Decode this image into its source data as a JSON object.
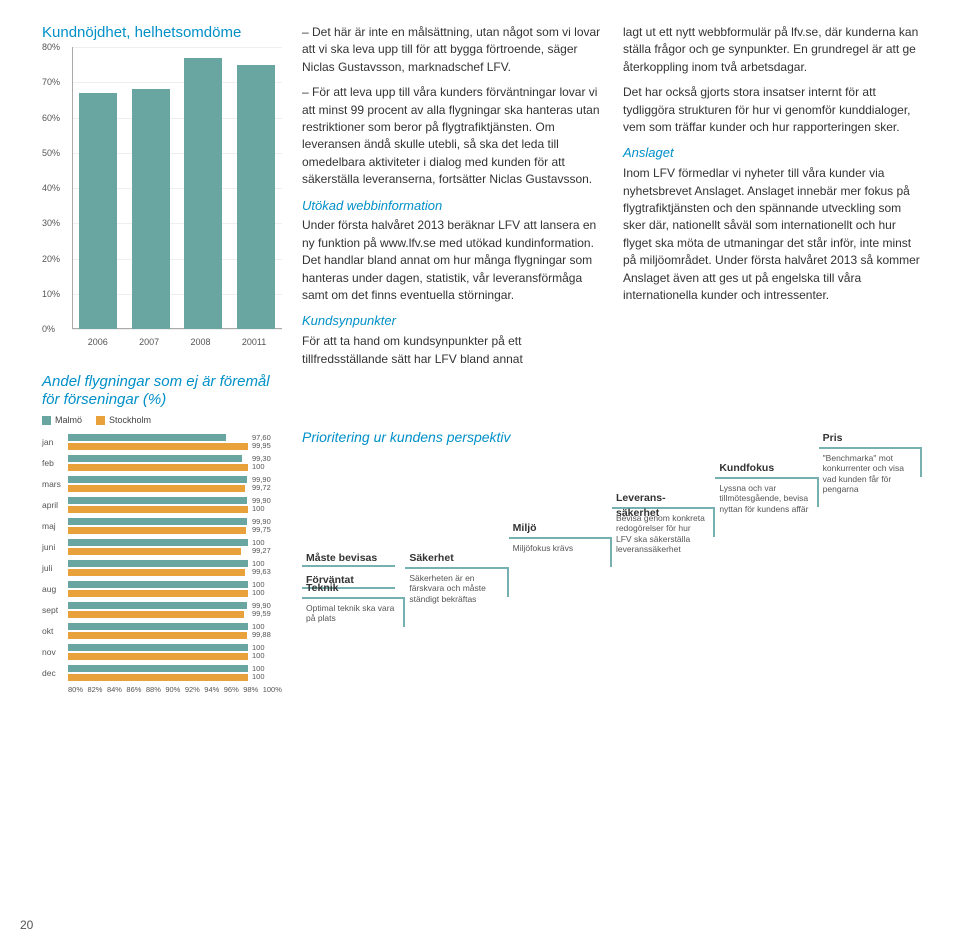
{
  "page_number": "20",
  "chart1": {
    "title": "Kundnöjdhet, helhetsomdöme",
    "type": "bar",
    "categories": [
      "2006",
      "2007",
      "2008",
      "20011"
    ],
    "values": [
      67,
      68,
      77,
      75
    ],
    "ymax": 80,
    "ytick_step": 10,
    "yticks": [
      "0%",
      "10%",
      "20%",
      "30%",
      "40%",
      "50%",
      "60%",
      "70%",
      "80%"
    ],
    "bar_color": "#69a6a2",
    "grid_color": "#eeeeee"
  },
  "chart2": {
    "title": "Andel flygningar som ej är föremål för förseningar (%)",
    "legend": [
      {
        "label": "Malmö",
        "color": "#69a6a2"
      },
      {
        "label": "Stockholm",
        "color": "#e9a23b"
      }
    ],
    "xmin": 80,
    "xmax": 100,
    "xticks": [
      "80%",
      "82%",
      "84%",
      "86%",
      "88%",
      "90%",
      "92%",
      "94%",
      "96%",
      "98%",
      "100%"
    ],
    "rows": [
      {
        "label": "jan",
        "malmo": 97.6,
        "stockholm": 99.95,
        "v1": "97,60",
        "v2": "99,95"
      },
      {
        "label": "feb",
        "malmo": 99.3,
        "stockholm": 100,
        "v1": "99,30",
        "v2": "100"
      },
      {
        "label": "mars",
        "malmo": 99.9,
        "stockholm": 99.72,
        "v1": "99,90",
        "v2": "99,72"
      },
      {
        "label": "april",
        "malmo": 99.9,
        "stockholm": 100,
        "v1": "99,90",
        "v2": "100"
      },
      {
        "label": "maj",
        "malmo": 99.9,
        "stockholm": 99.75,
        "v1": "99,90",
        "v2": "99,75"
      },
      {
        "label": "juni",
        "malmo": 100,
        "stockholm": 99.27,
        "v1": "100",
        "v2": "99,27"
      },
      {
        "label": "juli",
        "malmo": 100,
        "stockholm": 99.63,
        "v1": "100",
        "v2": "99,63"
      },
      {
        "label": "aug",
        "malmo": 100,
        "stockholm": 100,
        "v1": "100",
        "v2": "100"
      },
      {
        "label": "sept",
        "malmo": 99.9,
        "stockholm": 99.59,
        "v1": "99,90",
        "v2": "99,59"
      },
      {
        "label": "okt",
        "malmo": 100,
        "stockholm": 99.88,
        "v1": "100",
        "v2": "99,88"
      },
      {
        "label": "nov",
        "malmo": 100,
        "stockholm": 100,
        "v1": "100",
        "v2": "100"
      },
      {
        "label": "dec",
        "malmo": 100,
        "stockholm": 100,
        "v1": "100",
        "v2": "100"
      }
    ]
  },
  "textcol": {
    "p1": "– Det här är inte en målsättning, utan något som vi lovar att vi ska leva upp till för att bygga förtroende, säger Niclas Gustavsson, marknadschef LFV.",
    "p2": "– För att leva upp till våra kunders förväntningar lovar vi att minst 99 procent av alla flygningar ska hanteras utan restriktioner som beror på flygtrafiktjänsten. Om leveransen ändå skulle utebli, så ska det leda till omedelbara aktiviteter i dialog med kunden för att säkerställa leveranserna, fortsätter Niclas Gustavsson.",
    "h1": "Utökad webbinformation",
    "p3": "Under första halvåret 2013 beräknar LFV att lansera en ny funktion på www.lfv.se med utökad kundinformation. Det handlar bland annat om hur många flygningar som hanteras under dagen, statistik, vår leveransförmåga samt om det finns eventuella störningar.",
    "h2": "Kundsynpunkter",
    "p4": "För att ta hand om kundsynpunkter på ett tillfredsställande sätt har LFV bland annat",
    "p5": "lagt ut ett nytt webbformulär på lfv.se, där kunderna kan ställa frågor och ge synpunkter. En grundregel är att ge återkoppling inom två arbetsdagar.",
    "p6": "Det har också gjorts stora insatser internt för att tydliggöra strukturen för hur vi genomför kunddialoger, vem som träffar kunder och hur rapporteringen sker.",
    "h3": "Anslaget",
    "p7": "Inom LFV förmedlar vi nyheter till våra kunder via nyhetsbrevet Anslaget. Anslaget innebär mer fokus på flygtrafiktjänsten och den spännande utveckling som sker där, nationellt såväl som internationellt och hur flyget ska möta de utmaningar det står inför, inte minst på miljöområdet. Under första halvåret 2013 så kommer Anslaget även att ges ut på engelska till våra internationella kunder och intressenter."
  },
  "stairs": {
    "title": "Prioritering ur kundens perspektiv",
    "border_color": "#77b0b0",
    "steps": [
      {
        "label": "Teknik",
        "desc": "Optimal teknik ska vara på plats"
      },
      {
        "label": "Säkerhet",
        "desc": "Säkerheten är en färskvara och måste ständigt bekräftas"
      },
      {
        "label": "Miljö",
        "desc": "Miljöfokus krävs"
      },
      {
        "label": "Leverans-\nsäkerhet",
        "desc": "Bevisa genom konkreta redogörelser för hur LFV ska säkerställa leveranssäkerhet"
      },
      {
        "label": "Kundfokus",
        "desc": "Lyssna och var tillmötesgående, bevisa nyttan för kundens affär"
      },
      {
        "label": "Pris",
        "desc": "\"Benchmarka\" mot konkurrenter och visa vad kunden får för pengarna"
      }
    ],
    "extra": [
      {
        "label": "Måste bevisas"
      },
      {
        "label": "Förväntat"
      }
    ]
  }
}
